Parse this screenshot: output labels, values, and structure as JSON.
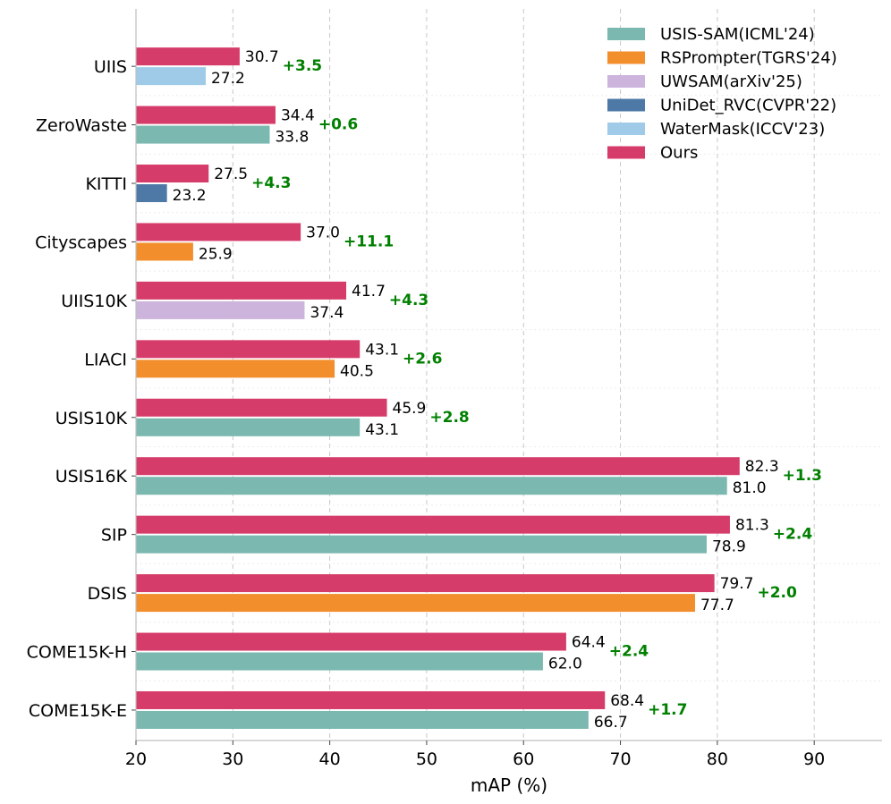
{
  "chart_data": {
    "type": "bar",
    "orientation": "horizontal",
    "xlabel": "mAP (%)",
    "ylabel": "",
    "xlim": [
      20,
      97
    ],
    "xticks": [
      20,
      30,
      40,
      50,
      60,
      70,
      80,
      90
    ],
    "legend_position": "top-right",
    "colors": {
      "USIS-SAM(ICML'24)": "#7ab8b0",
      "RSPrompter(TGRS'24)": "#f28e2c",
      "UWSAM(arXiv'25)": "#cdb4dc",
      "UniDet_RVC(CVPR'22)": "#4e79a7",
      "WaterMask(ICCV'23)": "#a0cbe8",
      "Ours": "#d63c6a",
      "delta": "#008000"
    },
    "legend": [
      "USIS-SAM(ICML'24)",
      "RSPrompter(TGRS'24)",
      "UWSAM(arXiv'25)",
      "UniDet_RVC(CVPR'22)",
      "WaterMask(ICCV'23)",
      "Ours"
    ],
    "categories": [
      {
        "name": "UIIS",
        "ours": 30.7,
        "baseline": 27.2,
        "baseline_method": "WaterMask(ICCV'23)",
        "ours_label": "30.7",
        "baseline_label": "27.2",
        "delta": "+3.5"
      },
      {
        "name": "ZeroWaste",
        "ours": 34.4,
        "baseline": 33.8,
        "baseline_method": "USIS-SAM(ICML'24)",
        "ours_label": "34.4",
        "baseline_label": "33.8",
        "delta": "+0.6"
      },
      {
        "name": "KITTI",
        "ours": 27.5,
        "baseline": 23.2,
        "baseline_method": "UniDet_RVC(CVPR'22)",
        "ours_label": "27.5",
        "baseline_label": "23.2",
        "delta": "+4.3"
      },
      {
        "name": "Cityscapes",
        "ours": 37.0,
        "baseline": 25.9,
        "baseline_method": "RSPrompter(TGRS'24)",
        "ours_label": "37.0",
        "baseline_label": "25.9",
        "delta": "+11.1"
      },
      {
        "name": "UIIS10K",
        "ours": 41.7,
        "baseline": 37.4,
        "baseline_method": "UWSAM(arXiv'25)",
        "ours_label": "41.7",
        "baseline_label": "37.4",
        "delta": "+4.3"
      },
      {
        "name": "LIACI",
        "ours": 43.1,
        "baseline": 40.5,
        "baseline_method": "RSPrompter(TGRS'24)",
        "ours_label": "43.1",
        "baseline_label": "40.5",
        "delta": "+2.6"
      },
      {
        "name": "USIS10K",
        "ours": 45.9,
        "baseline": 43.1,
        "baseline_method": "USIS-SAM(ICML'24)",
        "ours_label": "45.9",
        "baseline_label": "43.1",
        "delta": "+2.8"
      },
      {
        "name": "USIS16K",
        "ours": 82.3,
        "baseline": 81.0,
        "baseline_method": "USIS-SAM(ICML'24)",
        "ours_label": "82.3",
        "baseline_label": "81.0",
        "delta": "+1.3"
      },
      {
        "name": "SIP",
        "ours": 81.3,
        "baseline": 78.9,
        "baseline_method": "USIS-SAM(ICML'24)",
        "ours_label": "81.3",
        "baseline_label": "78.9",
        "delta": "+2.4"
      },
      {
        "name": "DSIS",
        "ours": 79.7,
        "baseline": 77.7,
        "baseline_method": "RSPrompter(TGRS'24)",
        "ours_label": "79.7",
        "baseline_label": "77.7",
        "delta": "+2.0"
      },
      {
        "name": "COME15K-H",
        "ours": 64.4,
        "baseline": 62.0,
        "baseline_method": "USIS-SAM(ICML'24)",
        "ours_label": "64.4",
        "baseline_label": "62.0",
        "delta": "+2.4"
      },
      {
        "name": "COME15K-E",
        "ours": 68.4,
        "baseline": 66.7,
        "baseline_method": "USIS-SAM(ICML'24)",
        "ours_label": "68.4",
        "baseline_label": "66.7",
        "delta": "+1.7"
      }
    ]
  }
}
